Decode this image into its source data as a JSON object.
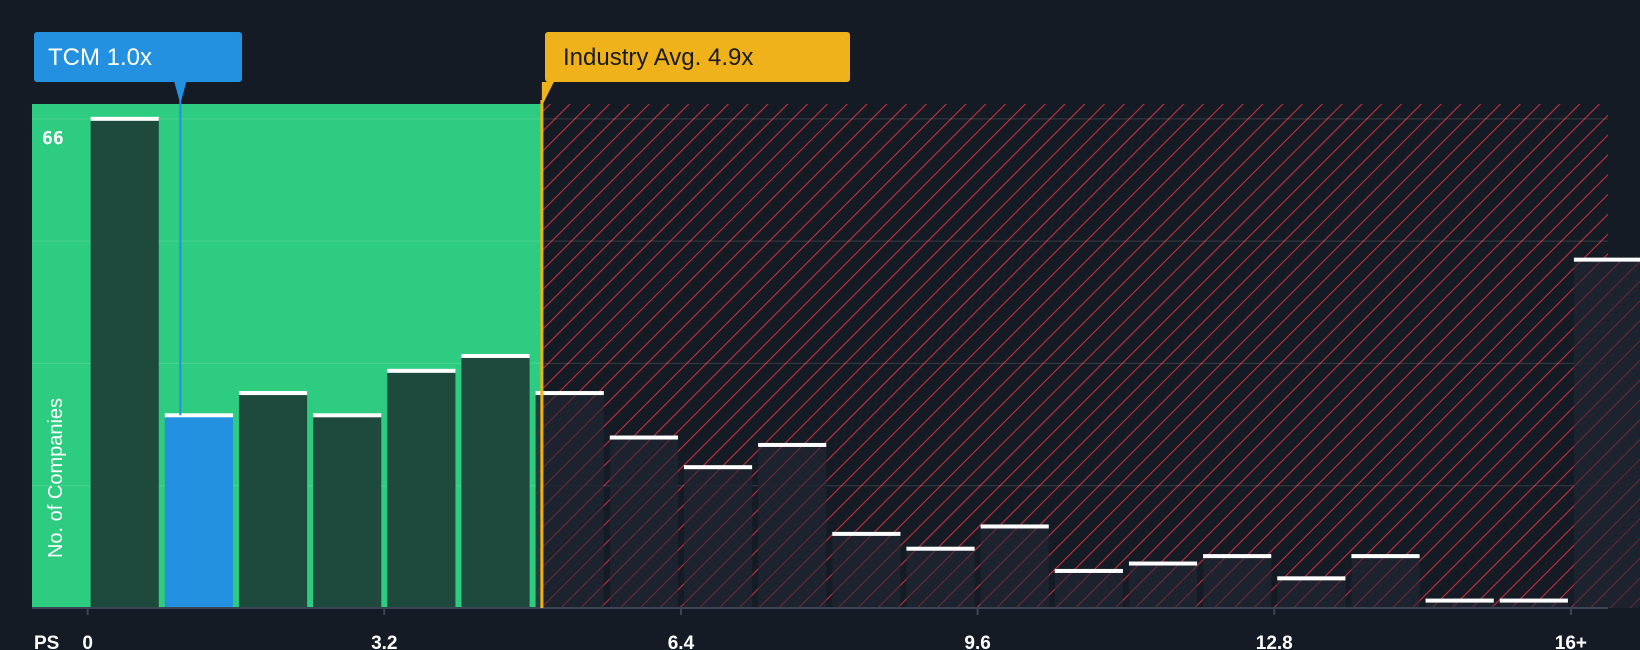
{
  "chart_data": {
    "type": "bar",
    "xlabel": "PS",
    "ylabel": "No. of Companies",
    "x_ticks": [
      "0",
      "3.2",
      "6.4",
      "9.6",
      "12.8",
      "16+"
    ],
    "x_tick_values": [
      0,
      3.2,
      6.4,
      9.6,
      12.8,
      16
    ],
    "y_ticks": [
      "66"
    ],
    "ylim": [
      0,
      68
    ],
    "xlim": [
      -0.6,
      16.4
    ],
    "bin_width": 0.8,
    "bin_starts": [
      0,
      0.8,
      1.6,
      2.4,
      3.2,
      4.0,
      4.8,
      5.6,
      6.4,
      7.2,
      8.0,
      8.8,
      9.6,
      10.4,
      11.2,
      12.0,
      12.8,
      13.6,
      14.4,
      15.2,
      16.0
    ],
    "values": [
      66,
      26,
      29,
      26,
      32,
      34,
      29,
      23,
      19,
      22,
      10,
      8,
      11,
      5,
      6,
      7,
      4,
      7,
      1,
      1,
      47
    ],
    "highlight_bin": 1,
    "company": {
      "label": "TCM 1.0x",
      "value": 1.0,
      "color": "#2391e0"
    },
    "industry_avg": {
      "label": "Industry Avg. 4.9x",
      "value": 4.9,
      "color": "#efb21a"
    },
    "fair_range": {
      "from": -0.6,
      "to": 4.9,
      "color": "#2ecc80"
    },
    "expensive_range": {
      "from": 4.9,
      "to": 16.4,
      "color": "#e63946"
    },
    "colors": {
      "background": "#151b24",
      "bar": "#1e4a3d",
      "bar_top": "#ffffff"
    }
  }
}
